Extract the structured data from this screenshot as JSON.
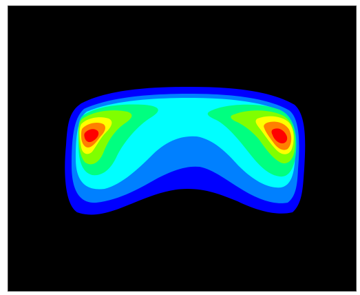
{
  "image": {
    "kind": "contour-plot",
    "background": "#000000",
    "frame_border": "#444444"
  },
  "colors": {
    "level_1": "#0000ff",
    "level_2": "#0080ff",
    "level_3": "#00ffff",
    "level_4": "#00ff80",
    "level_5": "#80ff00",
    "level_6": "#ffff00",
    "level_7": "#ff8000",
    "level_8": "#ff0000"
  }
}
